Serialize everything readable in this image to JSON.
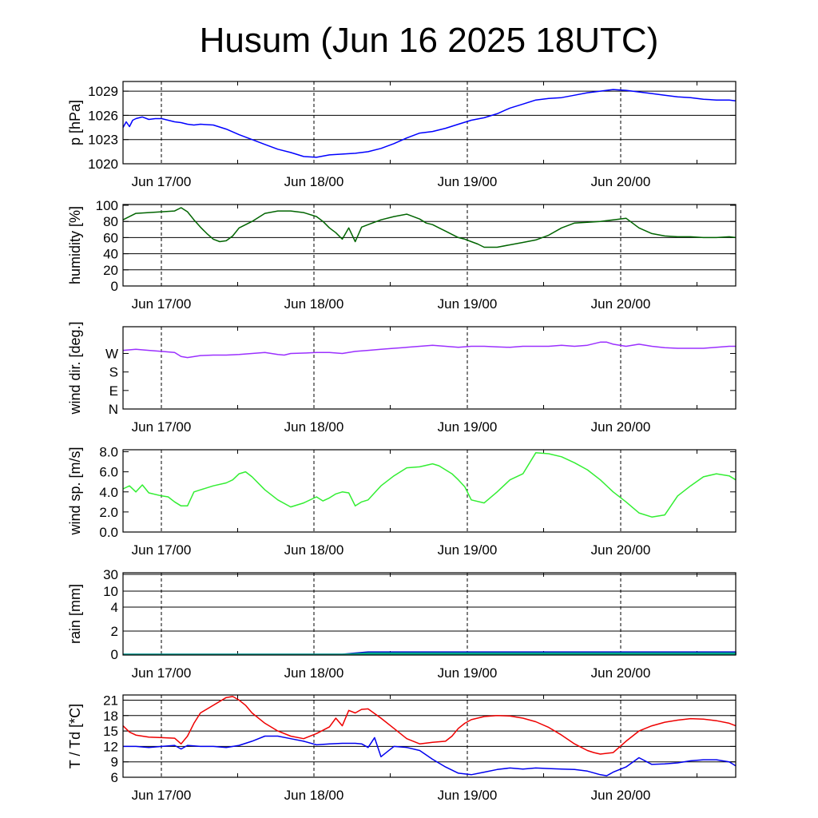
{
  "title": "Husum (Jun 16 2025 18UTC)",
  "chart_data": [
    {
      "type": "line",
      "name": "pressure",
      "ylabel": "p [hPa]",
      "ylim": [
        1020,
        1030.2
      ],
      "yticks": [
        1020,
        1023,
        1026,
        1029
      ],
      "ytick_labels": [
        "1020",
        "1023",
        "1026",
        "1029"
      ],
      "gridlines": [
        1023,
        1026,
        1029
      ],
      "xlim": [
        0,
        95
      ],
      "x_units": "hours since Jun 16 18UTC",
      "xtick_labels": [
        "Jun 17/00",
        "Jun 18/00",
        "Jun 19/00",
        "Jun 20/00"
      ],
      "series": [
        {
          "color": "#0000ff",
          "x": [
            0,
            0.5,
            1,
            1.5,
            2,
            3,
            4,
            5,
            6,
            7,
            8,
            9,
            10,
            11,
            12,
            14,
            16,
            18,
            20,
            22,
            24,
            26,
            28,
            30,
            32,
            34,
            36,
            38,
            40,
            42,
            44,
            46,
            48,
            50,
            52,
            54,
            56,
            58,
            60,
            62,
            64,
            66,
            68,
            70,
            72,
            74,
            76,
            78,
            80,
            82,
            84,
            86,
            88,
            90,
            92,
            94,
            95
          ],
          "values": [
            1024.5,
            1025.2,
            1024.6,
            1025.4,
            1025.6,
            1025.8,
            1025.5,
            1025.6,
            1025.6,
            1025.4,
            1025.2,
            1025.1,
            1024.9,
            1024.8,
            1024.9,
            1024.8,
            1024.3,
            1023.6,
            1023.0,
            1022.4,
            1021.8,
            1021.4,
            1020.9,
            1020.8,
            1021.1,
            1021.2,
            1021.3,
            1021.5,
            1021.9,
            1022.5,
            1023.2,
            1023.8,
            1024.0,
            1024.4,
            1024.9,
            1025.4,
            1025.7,
            1026.2,
            1026.9,
            1027.4,
            1027.9,
            1028.1,
            1028.2,
            1028.5,
            1028.8,
            1029.0,
            1029.2,
            1029.1,
            1028.9,
            1028.7,
            1028.5,
            1028.3,
            1028.2,
            1028.0,
            1027.9,
            1027.9,
            1027.8
          ]
        }
      ]
    },
    {
      "type": "line",
      "name": "humidity",
      "ylabel": "humidity [%]",
      "ylim": [
        0,
        101
      ],
      "yticks": [
        0,
        20,
        40,
        60,
        80,
        100
      ],
      "ytick_labels": [
        "0",
        "20",
        "40",
        "60",
        "80",
        "100"
      ],
      "gridlines": [
        20,
        40,
        60,
        80
      ],
      "xlim": [
        0,
        95
      ],
      "xtick_labels": [
        "Jun 17/00",
        "Jun 18/00",
        "Jun 19/00",
        "Jun 20/00"
      ],
      "series": [
        {
          "color": "#006400",
          "x": [
            0,
            1,
            2,
            4,
            6,
            8,
            9,
            10,
            11,
            12,
            13,
            14,
            15,
            16,
            17,
            18,
            20,
            22,
            24,
            26,
            28,
            30,
            31,
            32,
            33,
            34,
            35,
            36,
            37,
            38,
            40,
            42,
            44,
            46,
            47,
            48,
            49,
            50,
            51,
            52,
            53,
            54,
            55,
            56,
            58,
            60,
            62,
            64,
            66,
            68,
            70,
            72,
            74,
            76,
            78,
            80,
            82,
            84,
            86,
            88,
            90,
            92,
            94,
            95
          ],
          "values": [
            82,
            86,
            90,
            91,
            92,
            93,
            97,
            92,
            82,
            73,
            65,
            58,
            55,
            56,
            62,
            72,
            80,
            90,
            93,
            93,
            91,
            86,
            80,
            72,
            66,
            58,
            72,
            55,
            73,
            76,
            82,
            86,
            89,
            83,
            78,
            76,
            72,
            68,
            64,
            60,
            58,
            55,
            52,
            48,
            48,
            51,
            54,
            57,
            63,
            72,
            78,
            79,
            80,
            82,
            84,
            72,
            65,
            62,
            61,
            61,
            60,
            60,
            61,
            60
          ]
        }
      ]
    },
    {
      "type": "line",
      "name": "wind direction",
      "ylabel": "wind dir. [deg.]",
      "ylim": [
        0,
        400
      ],
      "yticks": [
        0,
        90,
        180,
        270
      ],
      "ytick_labels": [
        "N",
        "E",
        "S",
        "W"
      ],
      "gridlines": [],
      "xlim": [
        0,
        95
      ],
      "xtick_labels": [
        "Jun 17/00",
        "Jun 18/00",
        "Jun 19/00",
        "Jun 20/00"
      ],
      "series": [
        {
          "color": "#9b30ff",
          "x": [
            0,
            2,
            4,
            6,
            8,
            9,
            10,
            12,
            14,
            16,
            18,
            20,
            22,
            23,
            24,
            25,
            26,
            28,
            30,
            32,
            34,
            36,
            38,
            40,
            42,
            44,
            46,
            48,
            50,
            52,
            54,
            56,
            58,
            60,
            62,
            64,
            66,
            68,
            70,
            72,
            74,
            75,
            76,
            78,
            80,
            82,
            84,
            86,
            88,
            90,
            92,
            94,
            95
          ],
          "values": [
            285,
            290,
            285,
            280,
            275,
            255,
            250,
            260,
            262,
            262,
            265,
            270,
            275,
            270,
            265,
            262,
            270,
            272,
            275,
            275,
            270,
            280,
            285,
            290,
            295,
            300,
            305,
            310,
            305,
            300,
            305,
            305,
            302,
            300,
            305,
            305,
            305,
            310,
            305,
            310,
            325,
            325,
            315,
            305,
            315,
            305,
            298,
            295,
            295,
            295,
            300,
            305,
            305
          ]
        }
      ]
    },
    {
      "type": "line",
      "name": "wind speed",
      "ylabel": "wind sp. [m/s]",
      "ylim": [
        0,
        8.2
      ],
      "yticks": [
        0,
        2,
        4,
        6,
        8
      ],
      "ytick_labels": [
        "0.0",
        "2.0",
        "4.0",
        "6.0",
        "8.0"
      ],
      "gridlines": [],
      "xlim": [
        0,
        95
      ],
      "xtick_labels": [
        "Jun 17/00",
        "Jun 18/00",
        "Jun 19/00",
        "Jun 20/00"
      ],
      "series": [
        {
          "color": "#33ee33",
          "x": [
            0,
            1,
            2,
            3,
            4,
            6,
            7,
            8,
            9,
            10,
            11,
            12,
            14,
            16,
            17,
            18,
            19,
            20,
            22,
            24,
            26,
            28,
            30,
            31,
            32,
            33,
            34,
            35,
            36,
            37,
            38,
            40,
            42,
            44,
            46,
            48,
            49,
            50,
            51,
            52,
            53,
            54,
            56,
            58,
            60,
            62,
            64,
            66,
            68,
            70,
            72,
            74,
            76,
            78,
            80,
            82,
            84,
            86,
            88,
            90,
            92,
            94,
            95
          ],
          "values": [
            4.3,
            4.6,
            4.0,
            4.7,
            3.9,
            3.6,
            3.5,
            3.0,
            2.6,
            2.6,
            4.0,
            4.2,
            4.6,
            4.9,
            5.2,
            5.8,
            6.0,
            5.5,
            4.2,
            3.2,
            2.5,
            2.9,
            3.5,
            3.1,
            3.4,
            3.8,
            4.0,
            3.9,
            2.6,
            3.0,
            3.2,
            4.6,
            5.6,
            6.4,
            6.5,
            6.8,
            6.6,
            6.2,
            5.8,
            5.2,
            4.5,
            3.2,
            2.9,
            4.0,
            5.2,
            5.8,
            7.9,
            7.8,
            7.5,
            6.9,
            6.2,
            5.2,
            4.0,
            3.0,
            1.9,
            1.5,
            1.7,
            3.6,
            4.6,
            5.5,
            5.8,
            5.6,
            5.2
          ]
        }
      ]
    },
    {
      "type": "area",
      "name": "rain",
      "ylabel": "rain [mm]",
      "ylim": [
        0,
        30
      ],
      "yticks": [
        0,
        2,
        4,
        10,
        30
      ],
      "ytick_labels": [
        "0",
        "2",
        "4",
        "10",
        "30"
      ],
      "gridlines": [
        2,
        4,
        10,
        30
      ],
      "scale": "nonlinear",
      "xlim": [
        0,
        95
      ],
      "xtick_labels": [
        "Jun 17/00",
        "Jun 18/00",
        "Jun 19/00",
        "Jun 20/00"
      ],
      "series": [
        {
          "color": "#0000cc",
          "x": [
            0,
            34,
            36,
            38,
            95
          ],
          "values": [
            0,
            0,
            0.1,
            0.2,
            0.2
          ]
        },
        {
          "color": "#00aa88",
          "x": [
            0,
            34,
            36,
            38,
            95
          ],
          "values": [
            0,
            0,
            0.05,
            0.1,
            0.1
          ]
        }
      ]
    },
    {
      "type": "line",
      "name": "temperature and dewpoint",
      "ylabel": "T / Td [*C]",
      "ylim": [
        6,
        22
      ],
      "yticks": [
        6,
        9,
        12,
        15,
        18,
        21
      ],
      "ytick_labels": [
        "6",
        "9",
        "12",
        "15",
        "18",
        "21"
      ],
      "gridlines": [
        9,
        12,
        15,
        18,
        21
      ],
      "xlim": [
        0,
        95
      ],
      "xtick_labels": [
        "Jun 17/00",
        "Jun 18/00",
        "Jun 19/00",
        "Jun 20/00"
      ],
      "series": [
        {
          "color": "#ee0000",
          "x": [
            0,
            1,
            2,
            4,
            6,
            8,
            9,
            10,
            11,
            12,
            14,
            16,
            17,
            18,
            19,
            20,
            22,
            24,
            26,
            28,
            30,
            32,
            33,
            34,
            35,
            36,
            37,
            38,
            40,
            42,
            44,
            46,
            48,
            50,
            51,
            52,
            53,
            54,
            56,
            58,
            60,
            62,
            64,
            66,
            68,
            70,
            72,
            73,
            74,
            76,
            78,
            80,
            82,
            84,
            86,
            88,
            90,
            92,
            94,
            95
          ],
          "values": [
            16.0,
            14.8,
            14.2,
            13.8,
            13.7,
            13.6,
            12.5,
            14.0,
            16.5,
            18.5,
            20.0,
            21.5,
            21.7,
            21.0,
            20.0,
            18.5,
            16.5,
            15.0,
            14.0,
            13.5,
            14.5,
            15.8,
            17.5,
            16.0,
            19.0,
            18.5,
            19.2,
            19.3,
            17.5,
            15.5,
            13.5,
            12.5,
            12.8,
            13.0,
            14.0,
            15.5,
            16.5,
            17.2,
            17.8,
            18.0,
            17.9,
            17.5,
            16.8,
            15.7,
            14.2,
            12.5,
            11.2,
            10.8,
            10.5,
            10.8,
            13.0,
            15.0,
            16.0,
            16.7,
            17.1,
            17.4,
            17.3,
            17.0,
            16.5,
            16.0
          ]
        },
        {
          "color": "#0000ee",
          "x": [
            0,
            2,
            4,
            6,
            8,
            9,
            10,
            12,
            14,
            16,
            18,
            20,
            22,
            24,
            26,
            28,
            30,
            32,
            34,
            36,
            37,
            38,
            39,
            40,
            42,
            44,
            46,
            48,
            50,
            52,
            54,
            56,
            58,
            60,
            62,
            64,
            66,
            68,
            70,
            72,
            74,
            75,
            76,
            78,
            80,
            82,
            84,
            86,
            88,
            90,
            92,
            94,
            95
          ],
          "values": [
            12.0,
            12.0,
            11.8,
            12.0,
            12.2,
            11.5,
            12.2,
            12.0,
            12.0,
            11.8,
            12.2,
            13.0,
            14.0,
            14.0,
            13.5,
            13.0,
            12.3,
            12.5,
            12.6,
            12.6,
            12.5,
            11.8,
            13.7,
            10.0,
            12.0,
            11.8,
            11.2,
            9.5,
            8.0,
            6.8,
            6.5,
            7.0,
            7.5,
            7.8,
            7.6,
            7.8,
            7.7,
            7.6,
            7.5,
            7.2,
            6.5,
            6.3,
            7.0,
            8.0,
            9.8,
            8.5,
            8.6,
            8.8,
            9.2,
            9.4,
            9.4,
            9.0,
            8.2
          ]
        }
      ]
    }
  ]
}
